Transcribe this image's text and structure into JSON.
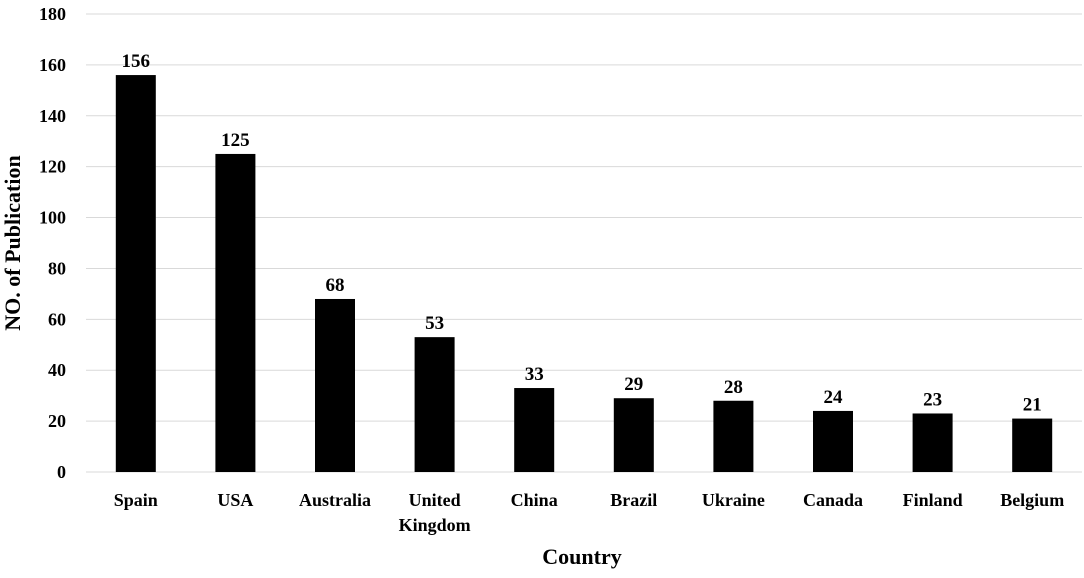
{
  "chart_data": {
    "type": "bar",
    "categories": [
      "Spain",
      "USA",
      "Australia",
      "United Kingdom",
      "China",
      "Brazil",
      "Ukraine",
      "Canada",
      "Finland",
      "Belgium"
    ],
    "category_lines": [
      [
        "Spain"
      ],
      [
        "USA"
      ],
      [
        "Australia"
      ],
      [
        "United",
        "Kingdom"
      ],
      [
        "China"
      ],
      [
        "Brazil"
      ],
      [
        "Ukraine"
      ],
      [
        "Canada"
      ],
      [
        "Finland"
      ],
      [
        "Belgium"
      ]
    ],
    "values": [
      156,
      125,
      68,
      53,
      33,
      29,
      28,
      24,
      23,
      21
    ],
    "title": "",
    "xlabel": "Country",
    "ylabel": "NO. of Publication",
    "ylim": [
      0,
      180
    ],
    "yticks": [
      0,
      20,
      40,
      60,
      80,
      100,
      120,
      140,
      160,
      180
    ],
    "grid": true,
    "bar_color": "#000000",
    "grid_color": "#d9d9d9"
  }
}
